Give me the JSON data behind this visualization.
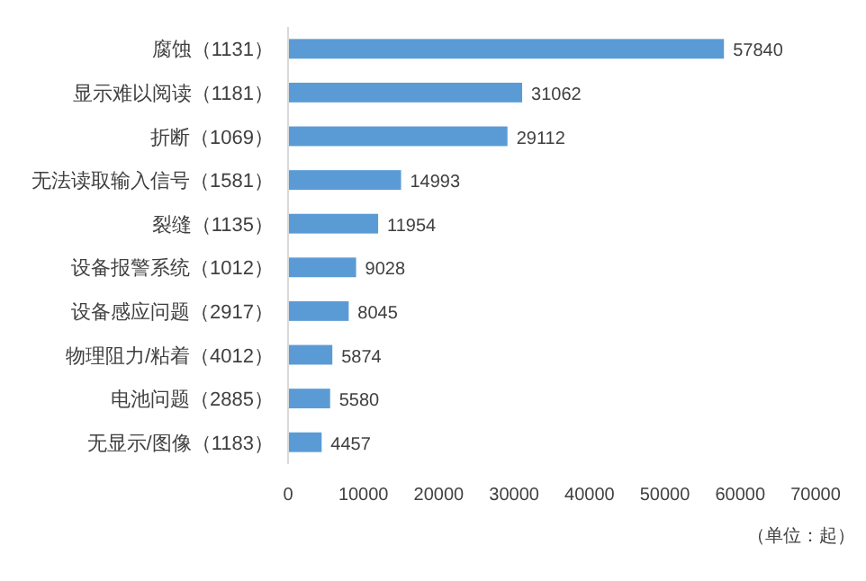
{
  "chart_data": {
    "type": "bar",
    "orientation": "horizontal",
    "categories": [
      "腐蚀（1131）",
      "显示难以阅读（1181）",
      "折断（1069）",
      "无法读取输入信号（1581）",
      "裂缝（1135）",
      "设备报警系统（1012）",
      "设备感应问题（2917）",
      "物理阻力/粘着（4012）",
      "电池问题（2885）",
      "无显示/图像（1183）"
    ],
    "values": [
      57840,
      31062,
      29112,
      14993,
      11954,
      9028,
      8045,
      5874,
      5580,
      4457
    ],
    "color": "#5b9bd5",
    "xlim": [
      0,
      70000
    ],
    "xticks": [
      0,
      10000,
      20000,
      30000,
      40000,
      50000,
      60000,
      70000
    ],
    "data_labels": true,
    "grid": false,
    "annotations": [
      "（单位：起）"
    ]
  }
}
